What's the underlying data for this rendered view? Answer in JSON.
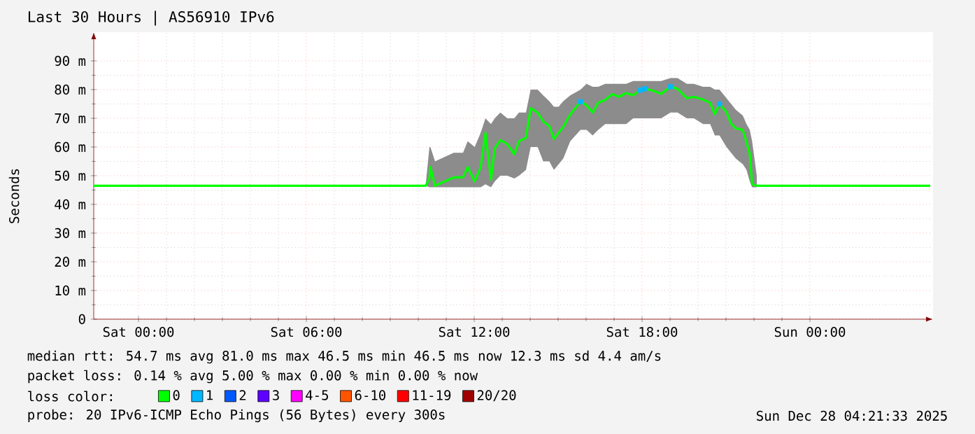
{
  "chart_data": {
    "type": "line",
    "title": "Last 30 Hours | AS56910 IPv6",
    "ylabel": "Seconds",
    "legend_title": "loss color:",
    "legend": "bottom",
    "grid": true,
    "xlim": [
      "2025-12-26T22:24",
      "2025-12-28T04:24"
    ],
    "ylim": [
      0,
      100
    ],
    "xticks": [
      {
        "value": "2025-12-27T00:00",
        "label": "Sat 00:00"
      },
      {
        "value": "2025-12-27T06:00",
        "label": "Sat 06:00"
      },
      {
        "value": "2025-12-27T12:00",
        "label": "Sat 12:00"
      },
      {
        "value": "2025-12-27T18:00",
        "label": "Sat 18:00"
      },
      {
        "value": "2025-12-28T00:00",
        "label": "Sun 00:00"
      }
    ],
    "yticks": [
      0,
      {
        "value": 10,
        "label": "10 m"
      },
      {
        "value": 20,
        "label": "20 m"
      },
      {
        "value": 30,
        "label": "30 m"
      },
      {
        "value": 40,
        "label": "40 m"
      },
      {
        "value": 50,
        "label": "50 m"
      },
      {
        "value": 60,
        "label": "60 m"
      },
      {
        "value": 70,
        "label": "70 m"
      },
      {
        "value": 80,
        "label": "80 m"
      },
      {
        "value": 90,
        "label": "90 m"
      }
    ],
    "series": [
      {
        "name": "0",
        "color": "#00ff00",
        "x": [
          "2025-12-26T22:24",
          "2025-12-27T10:16",
          "2025-12-27T10:24",
          "2025-12-27T10:26",
          "2025-12-27T10:36",
          "2025-12-27T11:16",
          "2025-12-27T11:36",
          "2025-12-27T11:46",
          "2025-12-27T12:01",
          "2025-12-27T12:14",
          "2025-12-27T12:24",
          "2025-12-27T12:36",
          "2025-12-27T12:44",
          "2025-12-27T12:56",
          "2025-12-27T13:11",
          "2025-12-27T13:26",
          "2025-12-27T13:36",
          "2025-12-27T13:51",
          "2025-12-27T14:01",
          "2025-12-27T14:16",
          "2025-12-27T14:28",
          "2025-12-27T14:41",
          "2025-12-27T14:51",
          "2025-12-27T15:01",
          "2025-12-27T15:11",
          "2025-12-27T15:26",
          "2025-12-27T15:48",
          "2025-12-27T16:01",
          "2025-12-27T16:14",
          "2025-12-27T16:26",
          "2025-12-27T16:41",
          "2025-12-27T16:56",
          "2025-12-27T17:11",
          "2025-12-27T17:26",
          "2025-12-27T17:41",
          "2025-12-27T17:56",
          "2025-12-27T18:06",
          "2025-12-27T18:26",
          "2025-12-27T18:41",
          "2025-12-27T19:01",
          "2025-12-27T19:16",
          "2025-12-27T19:36",
          "2025-12-27T19:51",
          "2025-12-27T20:11",
          "2025-12-27T20:26",
          "2025-12-27T20:36",
          "2025-12-27T20:46",
          "2025-12-27T21:01",
          "2025-12-27T21:11",
          "2025-12-27T21:21",
          "2025-12-27T21:36",
          "2025-12-27T21:44",
          "2025-12-27T21:51",
          "2025-12-27T21:56",
          "2025-12-27T22:06",
          "2025-12-28T04:18"
        ],
        "values": [
          46.5,
          46.5,
          49,
          53,
          46.5,
          49.4,
          49.4,
          53,
          48,
          53,
          64.9,
          48.6,
          59.5,
          62.4,
          61,
          57.5,
          62,
          63.2,
          73.5,
          72,
          68.9,
          67.3,
          62.8,
          65,
          67,
          71.4,
          75.8,
          74.5,
          72,
          75.5,
          76.4,
          78.4,
          77.5,
          78.8,
          78,
          79.8,
          80.3,
          79.5,
          78.5,
          81,
          80.3,
          77,
          77.5,
          76.5,
          75.4,
          71.4,
          75,
          72.2,
          68.1,
          66.5,
          66,
          61.6,
          57.5,
          47,
          46.5,
          46.5
        ],
        "lower": [
          null,
          46.5,
          46,
          46,
          46,
          46,
          46,
          46,
          46,
          46,
          47,
          46,
          48,
          50,
          50,
          49,
          50,
          52,
          60,
          60,
          55,
          55,
          52,
          54,
          56,
          62,
          66,
          66,
          64,
          66,
          68,
          68,
          68,
          68,
          70,
          70,
          70,
          70,
          70,
          72,
          72,
          70,
          70,
          68,
          68,
          64,
          64,
          60,
          58,
          56,
          54,
          52,
          48,
          46,
          46,
          null
        ],
        "upper": [
          null,
          47,
          60,
          60,
          55,
          58,
          58,
          62,
          60,
          65,
          70,
          68,
          70,
          72,
          70,
          70,
          72,
          72,
          80,
          80,
          78,
          76,
          74,
          74,
          76,
          78,
          80,
          82,
          81,
          81,
          82,
          82,
          82,
          82,
          83,
          83,
          83,
          83,
          83,
          84,
          84,
          82,
          82,
          81,
          81,
          80,
          80,
          77,
          75,
          73,
          71,
          68,
          66,
          62,
          50,
          null
        ]
      },
      {
        "name": "1",
        "color": "#00b8ff",
        "type": "scatter",
        "marker": "square",
        "x": [
          "2025-12-27T15:48",
          "2025-12-27T17:56",
          "2025-12-27T18:06",
          "2025-12-27T19:01",
          "2025-12-27T20:46"
        ],
        "values": [
          75.8,
          79.8,
          80.3,
          81,
          75
        ]
      },
      {
        "name": "2",
        "color": "#0059ff"
      },
      {
        "name": "3",
        "color": "#5e00ff"
      },
      {
        "name": "4-5",
        "color": "#ff00ff"
      },
      {
        "name": "6-10",
        "color": "#ff5500"
      },
      {
        "name": "11-19",
        "color": "#ff0000"
      },
      {
        "name": "20/20",
        "color": "#a10000"
      }
    ],
    "annotations": [
      "median rtt:  54.7 ms avg  81.0 ms max  46.5 ms min  46.5 ms now  12.3 ms sd  4.4  am/s",
      "packet loss: 0.14 % avg  5.00 % max  0.00 % min  0.00 % now",
      "probe:  20 IPv6-ICMP Echo Pings (56 Bytes) every 300s",
      "Sun Dec 28 04:21:33 2025"
    ]
  }
}
